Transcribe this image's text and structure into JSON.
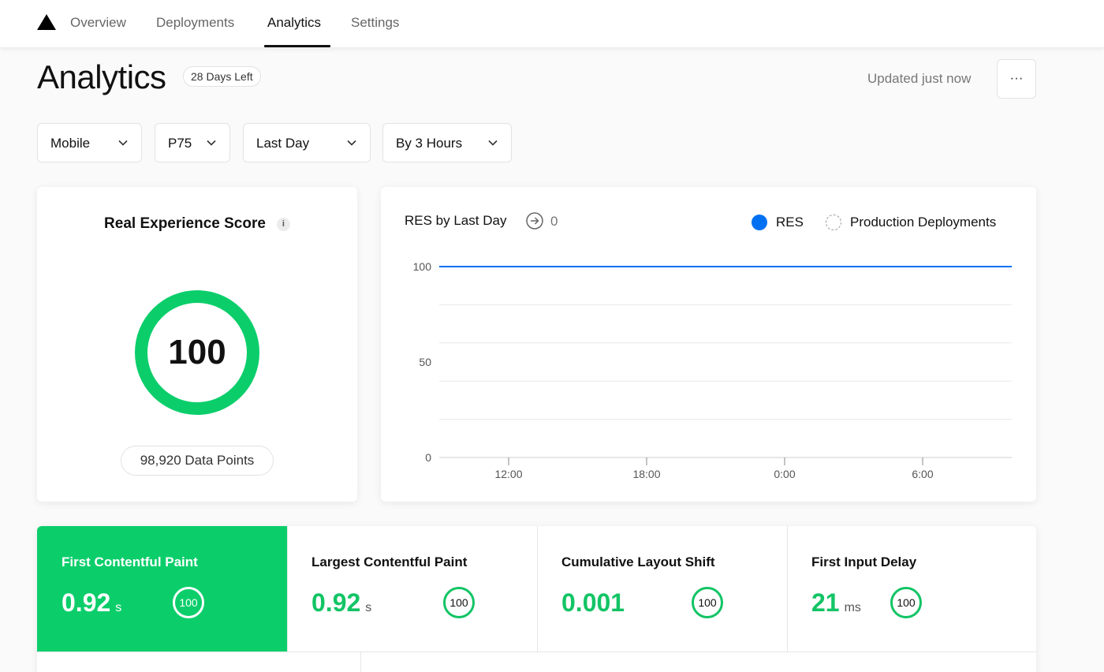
{
  "nav": {
    "logo": "triangle-logo",
    "tabs": [
      {
        "label": "Overview",
        "active": false
      },
      {
        "label": "Deployments",
        "active": false
      },
      {
        "label": "Analytics",
        "active": true
      },
      {
        "label": "Settings",
        "active": false
      }
    ]
  },
  "header": {
    "title": "Analytics",
    "badge": "28 Days Left",
    "updated": "Updated just now",
    "more_label": "···"
  },
  "filters": [
    {
      "label": "Mobile"
    },
    {
      "label": "P75"
    },
    {
      "label": "Last Day"
    },
    {
      "label": "By 3 Hours"
    }
  ],
  "score_card": {
    "title": "Real Experience Score",
    "info_label": "i",
    "score": "100",
    "data_points": "98,920 Data Points",
    "ring_color": "#0bce6b"
  },
  "chart_card": {
    "title": "RES by Last Day",
    "count": "0",
    "legend": [
      {
        "label": "RES",
        "color": "#0070f3"
      },
      {
        "label": "Production Deployments",
        "color": "#999999"
      }
    ]
  },
  "chart_data": {
    "type": "line",
    "x": [
      "12:00",
      "18:00",
      "0:00",
      "6:00"
    ],
    "xticks": [
      "12:00",
      "18:00",
      "0:00",
      "6:00"
    ],
    "series": [
      {
        "name": "RES",
        "values": [
          100,
          100,
          100,
          100
        ]
      }
    ],
    "yticks": [
      100,
      50,
      0
    ],
    "ylim": [
      0,
      100
    ],
    "grid": true,
    "legend_position": "top-right"
  },
  "metrics": [
    {
      "name": "First Contentful Paint",
      "value": "0.92",
      "unit": "s",
      "score": "100",
      "active": true
    },
    {
      "name": "Largest Contentful Paint",
      "value": "0.92",
      "unit": "s",
      "score": "100",
      "active": false
    },
    {
      "name": "Cumulative Layout Shift",
      "value": "0.001",
      "unit": "",
      "score": "100",
      "active": false
    },
    {
      "name": "First Input Delay",
      "value": "21",
      "unit": "ms",
      "score": "100",
      "active": false
    }
  ],
  "colors": {
    "accent_green": "#0bce6b",
    "accent_blue": "#0070f3"
  }
}
